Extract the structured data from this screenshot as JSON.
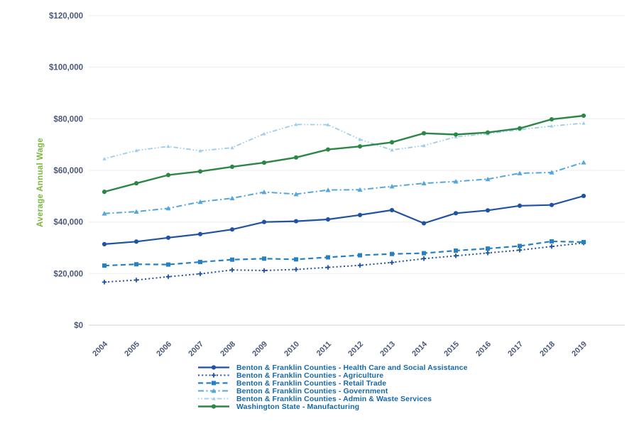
{
  "page": {
    "background": "#ffffff"
  },
  "axes": {
    "tick_label_color": "#4A5878",
    "grid_color": "#EDEDED",
    "axis_line_color": "#D6DAE0",
    "y_title_color": "#7DB742"
  },
  "legend": {
    "text_color": "#1568A8",
    "position": "bottom"
  },
  "chart_data": {
    "type": "line",
    "title": "",
    "xlabel": "",
    "ylabel": "Average Annual Wage",
    "x": [
      "2004",
      "2005",
      "2006",
      "2007",
      "2008",
      "2009",
      "2010",
      "2011",
      "2012",
      "2013",
      "2014",
      "2015",
      "2016",
      "2017",
      "2018",
      "2019"
    ],
    "ylim": [
      0,
      120000
    ],
    "ytick_interval": 20000,
    "grid": "horizontal",
    "legend_position": "bottom",
    "yticks": [
      {
        "value": 0,
        "label": "$0"
      },
      {
        "value": 20000,
        "label": "$20,000"
      },
      {
        "value": 40000,
        "label": "$40,000"
      },
      {
        "value": 60000,
        "label": "$60,000"
      },
      {
        "value": 80000,
        "label": "$80,000"
      },
      {
        "value": 100000,
        "label": "$100,000"
      },
      {
        "value": 120000,
        "label": "$120,000"
      }
    ],
    "series": [
      {
        "name": "Benton & Franklin Counties - Health Care and Social Assistance",
        "color": "#1F52A0",
        "line_style": "solid",
        "line_width": 2.2,
        "marker": "circle",
        "values": [
          31400,
          32400,
          33900,
          35300,
          37100,
          40000,
          40300,
          41000,
          42700,
          44600,
          39500,
          43400,
          44500,
          46300,
          46600,
          50100
        ]
      },
      {
        "name": "Benton & Franklin Counties - Agriculture",
        "color": "#1F52A0",
        "line_style": "dotted",
        "line_width": 2,
        "marker": "plus",
        "values": [
          16700,
          17500,
          18800,
          19900,
          21400,
          21200,
          21600,
          22400,
          23200,
          24300,
          25800,
          26900,
          28000,
          29100,
          30500,
          31900
        ]
      },
      {
        "name": "Benton & Franklin Counties - Retail Trade",
        "color": "#2581C4",
        "line_style": "dashed",
        "line_width": 2.2,
        "marker": "square",
        "values": [
          23100,
          23600,
          23500,
          24500,
          25400,
          25800,
          25500,
          26300,
          27100,
          27600,
          27900,
          28900,
          29700,
          30700,
          32500,
          32200
        ]
      },
      {
        "name": "Benton & Franklin Counties - Government",
        "color": "#54A7DC",
        "line_style": "dash-dot",
        "line_width": 2,
        "marker": "triangle",
        "values": [
          43300,
          44000,
          45300,
          47800,
          49200,
          51600,
          50800,
          52400,
          52500,
          53800,
          55000,
          55700,
          56600,
          58900,
          59200,
          63100
        ]
      },
      {
        "name": "Benton & Franklin Counties - Admin & Waste Services",
        "color": "#9CCDEB",
        "line_style": "dot-dot-dash",
        "line_width": 1.8,
        "marker": "small-triangle",
        "values": [
          64500,
          67700,
          69300,
          67600,
          68800,
          74200,
          77800,
          77700,
          72000,
          67900,
          69600,
          73000,
          74200,
          75800,
          77200,
          78300
        ]
      },
      {
        "name": "Washington State - Manufacturing",
        "color": "#2C8646",
        "line_style": "solid",
        "line_width": 2.4,
        "marker": "circle",
        "values": [
          51700,
          55000,
          58200,
          59600,
          61400,
          63000,
          65000,
          68100,
          69300,
          70900,
          74400,
          73900,
          74700,
          76300,
          79800,
          81200
        ]
      }
    ]
  }
}
